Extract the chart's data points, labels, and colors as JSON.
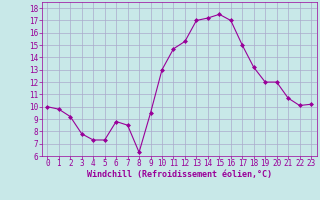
{
  "x": [
    0,
    1,
    2,
    3,
    4,
    5,
    6,
    7,
    8,
    9,
    10,
    11,
    12,
    13,
    14,
    15,
    16,
    17,
    18,
    19,
    20,
    21,
    22,
    23
  ],
  "y": [
    10,
    9.8,
    9.2,
    7.8,
    7.3,
    7.3,
    8.8,
    8.5,
    6.3,
    9.5,
    13.0,
    14.7,
    15.3,
    17.0,
    17.2,
    17.5,
    17.0,
    15.0,
    13.2,
    12.0,
    12.0,
    10.7,
    10.1,
    10.2
  ],
  "line_color": "#990099",
  "marker": "D",
  "marker_size": 2,
  "bg_color": "#c8e8e8",
  "grid_color": "#aaaacc",
  "xlabel": "Windchill (Refroidissement éolien,°C)",
  "xlabel_color": "#990099",
  "tick_color": "#990099",
  "spine_color": "#990099",
  "ylim": [
    6,
    18.5
  ],
  "xlim": [
    -0.5,
    23.5
  ],
  "yticks": [
    6,
    7,
    8,
    9,
    10,
    11,
    12,
    13,
    14,
    15,
    16,
    17,
    18
  ],
  "xticks": [
    0,
    1,
    2,
    3,
    4,
    5,
    6,
    7,
    8,
    9,
    10,
    11,
    12,
    13,
    14,
    15,
    16,
    17,
    18,
    19,
    20,
    21,
    22,
    23
  ],
  "tick_fontsize": 5.5,
  "xlabel_fontsize": 6.0
}
